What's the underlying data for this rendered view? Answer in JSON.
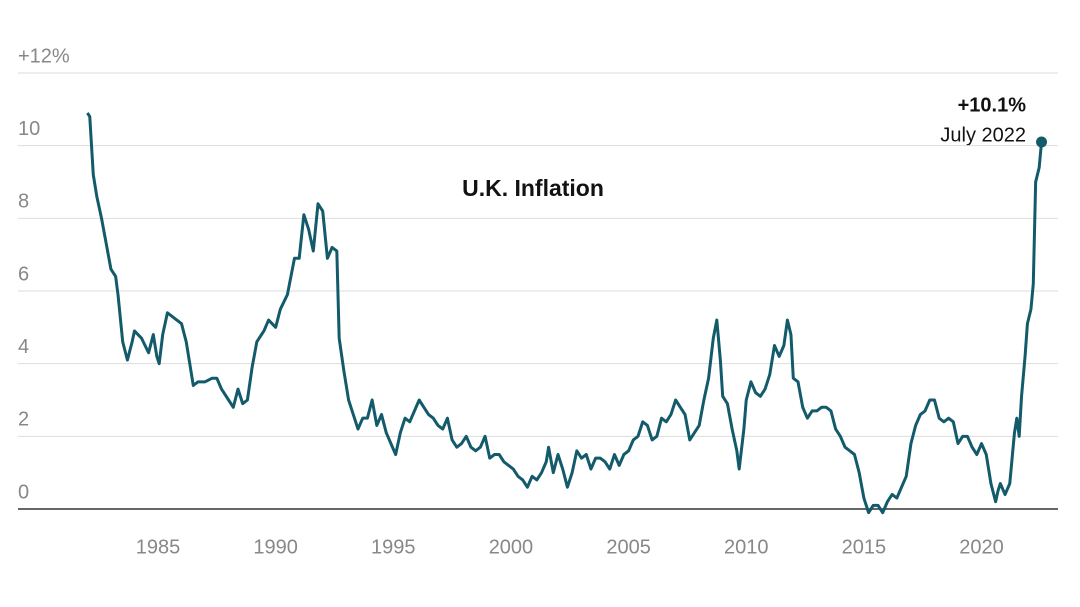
{
  "chart_data": {
    "type": "line",
    "title": "U.K. Inflation",
    "x": [
      1982.0,
      1982.1,
      1982.25,
      1982.4,
      1982.6,
      1982.8,
      1983.0,
      1983.2,
      1983.3,
      1983.5,
      1983.7,
      1983.9,
      1984.0,
      1984.3,
      1984.6,
      1984.8,
      1984.95,
      1985.05,
      1985.2,
      1985.4,
      1985.6,
      1985.8,
      1986.0,
      1986.2,
      1986.5,
      1986.7,
      1987.0,
      1987.3,
      1987.5,
      1987.7,
      1988.0,
      1988.2,
      1988.4,
      1988.6,
      1988.8,
      1989.0,
      1989.2,
      1989.5,
      1989.7,
      1990.0,
      1990.2,
      1990.5,
      1990.8,
      1991.0,
      1991.2,
      1991.4,
      1991.6,
      1991.8,
      1992.0,
      1992.2,
      1992.4,
      1992.6,
      1992.7,
      1992.9,
      1993.1,
      1993.3,
      1993.5,
      1993.7,
      1993.9,
      1994.1,
      1994.3,
      1994.5,
      1994.7,
      1994.9,
      1995.1,
      1995.3,
      1995.5,
      1995.7,
      1995.9,
      1996.1,
      1996.3,
      1996.5,
      1996.7,
      1996.9,
      1997.1,
      1997.3,
      1997.5,
      1997.7,
      1997.9,
      1998.1,
      1998.3,
      1998.5,
      1998.7,
      1998.9,
      1999.1,
      1999.3,
      1999.5,
      1999.7,
      1999.9,
      2000.1,
      2000.3,
      2000.5,
      2000.7,
      2000.9,
      2001.1,
      2001.3,
      2001.5,
      2001.6,
      2001.8,
      2002.0,
      2002.2,
      2002.4,
      2002.6,
      2002.8,
      2003.0,
      2003.2,
      2003.4,
      2003.6,
      2003.8,
      2004.0,
      2004.2,
      2004.4,
      2004.6,
      2004.8,
      2005.0,
      2005.2,
      2005.4,
      2005.6,
      2005.8,
      2006.0,
      2006.2,
      2006.4,
      2006.6,
      2006.8,
      2007.0,
      2007.2,
      2007.4,
      2007.6,
      2007.8,
      2008.0,
      2008.2,
      2008.4,
      2008.6,
      2008.75,
      2008.9,
      2009.0,
      2009.2,
      2009.4,
      2009.6,
      2009.7,
      2009.9,
      2010.0,
      2010.2,
      2010.4,
      2010.6,
      2010.8,
      2011.0,
      2011.2,
      2011.4,
      2011.6,
      2011.75,
      2011.9,
      2012.0,
      2012.2,
      2012.4,
      2012.6,
      2012.8,
      2013.0,
      2013.2,
      2013.4,
      2013.6,
      2013.8,
      2014.0,
      2014.2,
      2014.4,
      2014.6,
      2014.8,
      2015.0,
      2015.2,
      2015.4,
      2015.6,
      2015.8,
      2016.0,
      2016.2,
      2016.4,
      2016.6,
      2016.8,
      2017.0,
      2017.2,
      2017.4,
      2017.6,
      2017.8,
      2018.0,
      2018.2,
      2018.4,
      2018.6,
      2018.8,
      2019.0,
      2019.2,
      2019.4,
      2019.6,
      2019.8,
      2020.0,
      2020.2,
      2020.4,
      2020.6,
      2020.7,
      2020.8,
      2021.0,
      2021.2,
      2021.4,
      2021.5,
      2021.6,
      2021.7,
      2021.85,
      2021.95,
      2022.1,
      2022.2,
      2022.3,
      2022.45,
      2022.55
    ],
    "values": [
      10.9,
      10.8,
      9.2,
      8.6,
      8.0,
      7.3,
      6.6,
      6.4,
      5.9,
      4.6,
      4.1,
      4.6,
      4.9,
      4.7,
      4.3,
      4.8,
      4.2,
      4.0,
      4.8,
      5.4,
      5.3,
      5.2,
      5.1,
      4.6,
      3.4,
      3.5,
      3.5,
      3.6,
      3.6,
      3.3,
      3.0,
      2.8,
      3.3,
      2.9,
      3.0,
      3.9,
      4.6,
      4.9,
      5.2,
      5.0,
      5.5,
      5.9,
      6.9,
      6.9,
      8.1,
      7.7,
      7.1,
      8.4,
      8.2,
      6.9,
      7.2,
      7.1,
      4.7,
      3.8,
      3.0,
      2.6,
      2.2,
      2.5,
      2.5,
      3.0,
      2.3,
      2.6,
      2.1,
      1.8,
      1.5,
      2.1,
      2.5,
      2.4,
      2.7,
      3.0,
      2.8,
      2.6,
      2.5,
      2.3,
      2.2,
      2.5,
      1.9,
      1.7,
      1.8,
      2.0,
      1.7,
      1.6,
      1.7,
      2.0,
      1.4,
      1.5,
      1.5,
      1.3,
      1.2,
      1.1,
      0.9,
      0.8,
      0.6,
      0.9,
      0.8,
      1.0,
      1.3,
      1.7,
      1.0,
      1.5,
      1.1,
      0.6,
      1.0,
      1.6,
      1.4,
      1.5,
      1.1,
      1.4,
      1.4,
      1.3,
      1.1,
      1.5,
      1.2,
      1.5,
      1.6,
      1.9,
      2.0,
      2.4,
      2.3,
      1.9,
      2.0,
      2.5,
      2.4,
      2.6,
      3.0,
      2.8,
      2.6,
      1.9,
      2.1,
      2.3,
      3.0,
      3.6,
      4.7,
      5.2,
      4.1,
      3.1,
      2.9,
      2.2,
      1.6,
      1.1,
      2.2,
      3.0,
      3.5,
      3.2,
      3.1,
      3.3,
      3.7,
      4.5,
      4.2,
      4.5,
      5.2,
      4.8,
      3.6,
      3.5,
      2.8,
      2.5,
      2.7,
      2.7,
      2.8,
      2.8,
      2.7,
      2.2,
      2.0,
      1.7,
      1.6,
      1.5,
      1.0,
      0.3,
      -0.1,
      0.1,
      0.1,
      -0.1,
      0.2,
      0.4,
      0.3,
      0.6,
      0.9,
      1.8,
      2.3,
      2.6,
      2.7,
      3.0,
      3.0,
      2.5,
      2.4,
      2.5,
      2.4,
      1.8,
      2.0,
      2.0,
      1.7,
      1.5,
      1.8,
      1.5,
      0.7,
      0.2,
      0.5,
      0.7,
      0.4,
      0.7,
      2.1,
      2.5,
      2.0,
      3.1,
      4.2,
      5.1,
      5.5,
      6.2,
      9.0,
      9.4,
      10.1
    ],
    "color": "#135a6b",
    "xlim": [
      1979.05,
      2023.25
    ],
    "ylim": [
      0,
      12
    ],
    "xticks": [
      1985,
      1990,
      1995,
      2000,
      2005,
      2010,
      2015,
      2020
    ],
    "yticks": [
      0,
      2,
      4,
      6,
      8,
      10,
      {
        "value": 12,
        "label": "+12%"
      }
    ],
    "grid": true,
    "annotation": {
      "label": "+10.1%",
      "date": "July 2022"
    }
  }
}
